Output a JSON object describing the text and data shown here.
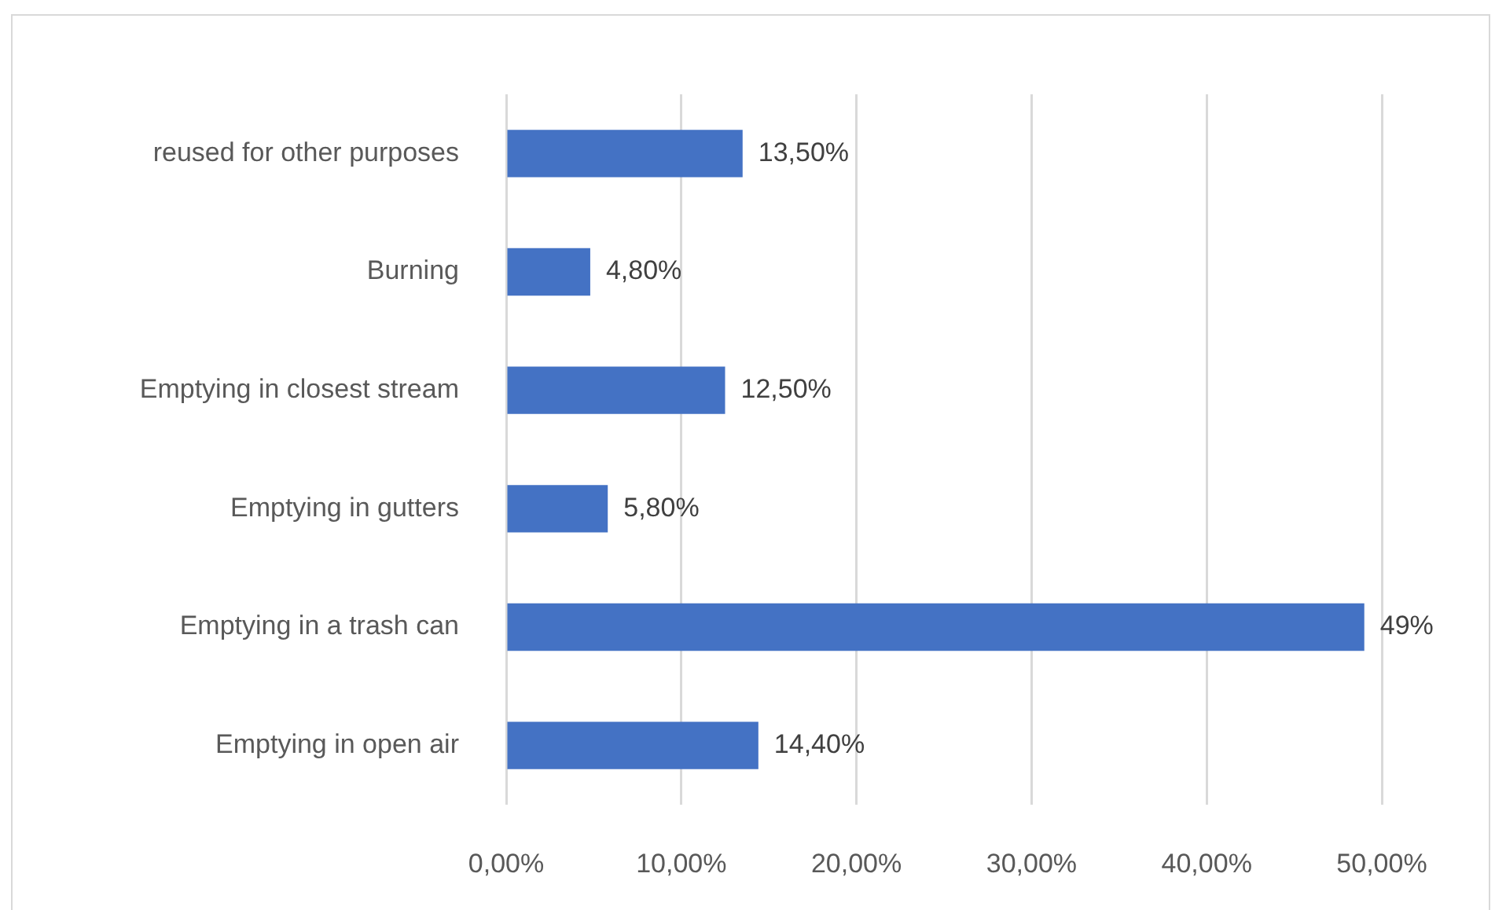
{
  "chart_data": {
    "type": "bar",
    "orientation": "horizontal",
    "categories": [
      "reused for other purposes",
      "Burning",
      "Emptying in closest stream",
      "Emptying in gutters",
      "Emptying in a trash can",
      "Emptying in open air"
    ],
    "values": [
      13.5,
      4.8,
      12.5,
      5.8,
      49,
      14.4
    ],
    "color": "#4472c4",
    "value_labels": [
      "13,50%",
      "4,80%",
      "12,50%",
      "5,80%",
      "49%",
      "14,40%"
    ],
    "xlim": [
      0,
      50
    ],
    "xticks": [
      {
        "value": 0,
        "label": "0,00%"
      },
      {
        "value": 10,
        "label": "10,00%"
      },
      {
        "value": 20,
        "label": "20,00%"
      },
      {
        "value": 30,
        "label": "30,00%"
      },
      {
        "value": 40,
        "label": "40,00%"
      },
      {
        "value": 50,
        "label": "50,00%"
      }
    ],
    "grid": "x"
  }
}
